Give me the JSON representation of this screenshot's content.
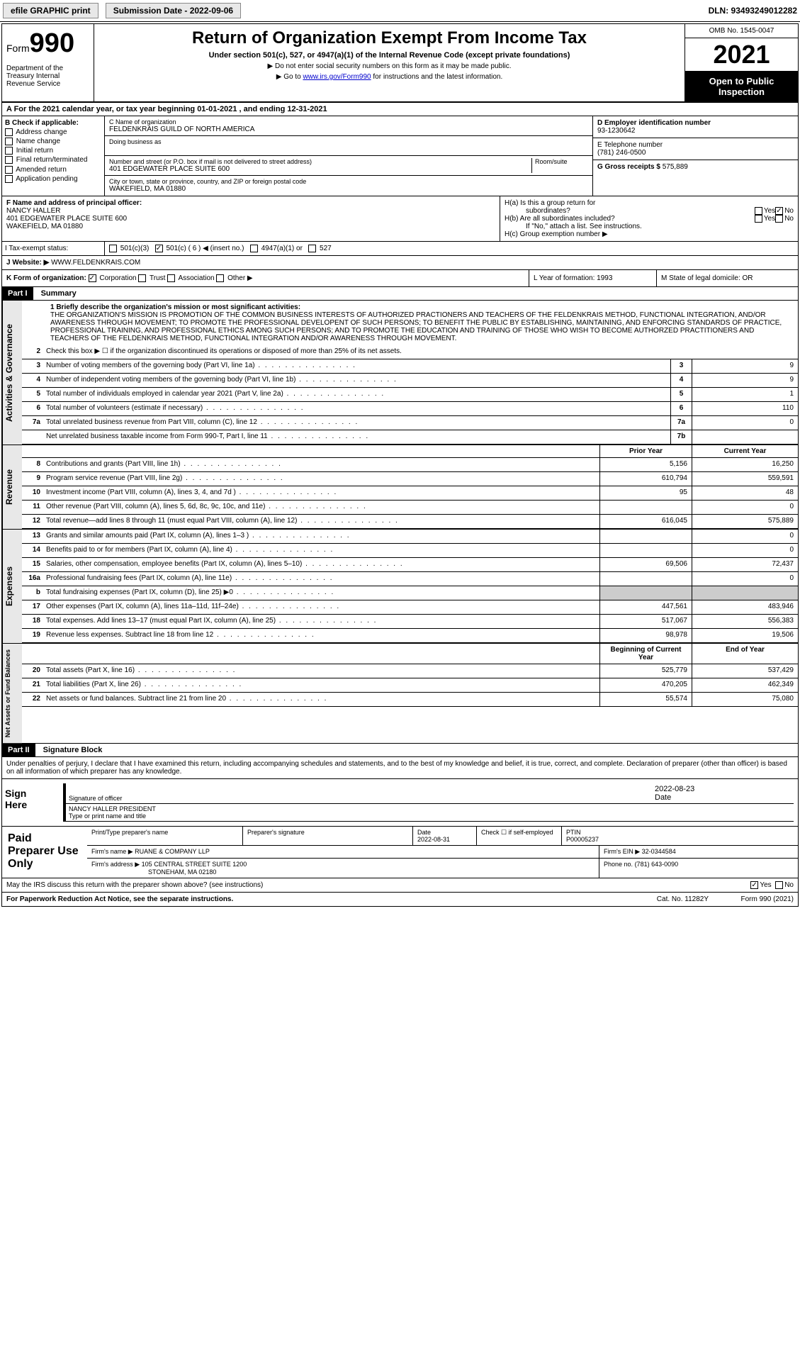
{
  "header": {
    "efile": "efile GRAPHIC print",
    "submission": "Submission Date - 2022-09-06",
    "dln": "DLN: 93493249012282"
  },
  "form": {
    "prefix": "Form",
    "number": "990",
    "dept": "Department of the Treasury Internal Revenue Service",
    "title": "Return of Organization Exempt From Income Tax",
    "subtitle": "Under section 501(c), 527, or 4947(a)(1) of the Internal Revenue Code (except private foundations)",
    "instr1": "▶ Do not enter social security numbers on this form as it may be made public.",
    "instr2_pre": "▶ Go to ",
    "instr2_link": "www.irs.gov/Form990",
    "instr2_post": " for instructions and the latest information.",
    "omb": "OMB No. 1545-0047",
    "year": "2021",
    "inspection": "Open to Public Inspection"
  },
  "period": "A For the 2021 calendar year, or tax year beginning 01-01-2021   , and ending 12-31-2021",
  "section_b": {
    "title": "B Check if applicable:",
    "items": [
      "Address change",
      "Name change",
      "Initial return",
      "Final return/terminated",
      "Amended return",
      "Application pending"
    ]
  },
  "section_c": {
    "name_label": "C Name of organization",
    "name": "FELDENKRAIS GUILD OF NORTH AMERICA",
    "dba_label": "Doing business as",
    "addr_label": "Number and street (or P.O. box if mail is not delivered to street address)",
    "room_label": "Room/suite",
    "addr": "401 EDGEWATER PLACE SUITE 600",
    "city_label": "City or town, state or province, country, and ZIP or foreign postal code",
    "city": "WAKEFIELD, MA  01880"
  },
  "section_d": {
    "ein_label": "D Employer identification number",
    "ein": "93-1230642",
    "phone_label": "E Telephone number",
    "phone": "(781) 246-0500",
    "gross_label": "G Gross receipts $",
    "gross": "575,889"
  },
  "section_f": {
    "label": "F  Name and address of principal officer:",
    "name": "NANCY HALLER",
    "addr1": "401 EDGEWATER PLACE SUITE 600",
    "addr2": "WAKEFIELD, MA  01880"
  },
  "section_h": {
    "ha": "H(a)  Is this a group return for",
    "ha2": "subordinates?",
    "hb": "H(b)  Are all subordinates included?",
    "hb2": "If \"No,\" attach a list. See instructions.",
    "hc": "H(c)  Group exemption number ▶"
  },
  "section_i": {
    "label": "I   Tax-exempt status:",
    "opts": [
      "501(c)(3)",
      "501(c) ( 6 ) ◀ (insert no.)",
      "4947(a)(1) or",
      "527"
    ]
  },
  "section_j": {
    "label": "J   Website: ▶",
    "value": "WWW.FELDENKRAIS.COM"
  },
  "section_k": "K Form of organization:",
  "k_opts": [
    "Corporation",
    "Trust",
    "Association",
    "Other ▶"
  ],
  "section_l": "L Year of formation: 1993",
  "section_m": "M State of legal domicile: OR",
  "part1": {
    "header": "Part I",
    "title": "Summary",
    "mission_label": "1   Briefly describe the organization's mission or most significant activities:",
    "mission": "THE ORGANIZATION'S MISSION IS PROMOTION OF THE COMMON BUSINESS INTERESTS OF AUTHORIZED PRACTIONERS AND TEACHERS OF THE FELDENKRAIS METHOD, FUNCTIONAL INTEGRATION, AND/OR AWARENESS THROUGH MOVEMENT; TO PROMOTE THE PROFESSIONAL DEVELOPENT OF SUCH PERSONS; TO BENEFIT THE PUBLIC BY ESTABLISHING, MAINTAINING, AND ENFORCING STANDARDS OF PRACTICE, PROFESSIONAL TRAINING, AND PROFESSIONAL ETHICS AMONG SUCH PERSONS; AND TO PROMOTE THE EDUCATION AND TRAINING OF THOSE WHO WISH TO BECOME AUTHORZED PRACTITIONERS AND TEACHERS OF THE FELDENKRAIS METHOD, FUNCTIONAL INTEGRATION AND/OR AWARENESS THROUGH MOVEMENT.",
    "line2": "Check this box ▶ ☐  if the organization discontinued its operations or disposed of more than 25% of its net assets."
  },
  "governance": {
    "label": "Activities & Governance",
    "rows": [
      {
        "n": "3",
        "t": "Number of voting members of the governing body (Part VI, line 1a)",
        "r": "3",
        "v": "9"
      },
      {
        "n": "4",
        "t": "Number of independent voting members of the governing body (Part VI, line 1b)",
        "r": "4",
        "v": "9"
      },
      {
        "n": "5",
        "t": "Total number of individuals employed in calendar year 2021 (Part V, line 2a)",
        "r": "5",
        "v": "1"
      },
      {
        "n": "6",
        "t": "Total number of volunteers (estimate if necessary)",
        "r": "6",
        "v": "110"
      },
      {
        "n": "7a",
        "t": "Total unrelated business revenue from Part VIII, column (C), line 12",
        "r": "7a",
        "v": "0"
      },
      {
        "n": "",
        "t": "Net unrelated business taxable income from Form 990-T, Part I, line 11",
        "r": "7b",
        "v": ""
      }
    ]
  },
  "revenue": {
    "label": "Revenue",
    "header_prior": "Prior Year",
    "header_current": "Current Year",
    "rows": [
      {
        "n": "8",
        "t": "Contributions and grants (Part VIII, line 1h)",
        "p": "5,156",
        "c": "16,250"
      },
      {
        "n": "9",
        "t": "Program service revenue (Part VIII, line 2g)",
        "p": "610,794",
        "c": "559,591"
      },
      {
        "n": "10",
        "t": "Investment income (Part VIII, column (A), lines 3, 4, and 7d )",
        "p": "95",
        "c": "48"
      },
      {
        "n": "11",
        "t": "Other revenue (Part VIII, column (A), lines 5, 6d, 8c, 9c, 10c, and 11e)",
        "p": "",
        "c": "0"
      },
      {
        "n": "12",
        "t": "Total revenue—add lines 8 through 11 (must equal Part VIII, column (A), line 12)",
        "p": "616,045",
        "c": "575,889"
      }
    ]
  },
  "expenses": {
    "label": "Expenses",
    "rows": [
      {
        "n": "13",
        "t": "Grants and similar amounts paid (Part IX, column (A), lines 1–3 )",
        "p": "",
        "c": "0"
      },
      {
        "n": "14",
        "t": "Benefits paid to or for members (Part IX, column (A), line 4)",
        "p": "",
        "c": "0"
      },
      {
        "n": "15",
        "t": "Salaries, other compensation, employee benefits (Part IX, column (A), lines 5–10)",
        "p": "69,506",
        "c": "72,437"
      },
      {
        "n": "16a",
        "t": "Professional fundraising fees (Part IX, column (A), line 11e)",
        "p": "",
        "c": "0"
      },
      {
        "n": "b",
        "t": "Total fundraising expenses (Part IX, column (D), line 25) ▶0",
        "p": "shaded",
        "c": "shaded"
      },
      {
        "n": "17",
        "t": "Other expenses (Part IX, column (A), lines 11a–11d, 11f–24e)",
        "p": "447,561",
        "c": "483,946"
      },
      {
        "n": "18",
        "t": "Total expenses. Add lines 13–17 (must equal Part IX, column (A), line 25)",
        "p": "517,067",
        "c": "556,383"
      },
      {
        "n": "19",
        "t": "Revenue less expenses. Subtract line 18 from line 12",
        "p": "98,978",
        "c": "19,506"
      }
    ]
  },
  "netassets": {
    "label": "Net Assets or Fund Balances",
    "header_begin": "Beginning of Current Year",
    "header_end": "End of Year",
    "rows": [
      {
        "n": "20",
        "t": "Total assets (Part X, line 16)",
        "p": "525,779",
        "c": "537,429"
      },
      {
        "n": "21",
        "t": "Total liabilities (Part X, line 26)",
        "p": "470,205",
        "c": "462,349"
      },
      {
        "n": "22",
        "t": "Net assets or fund balances. Subtract line 21 from line 20",
        "p": "55,574",
        "c": "75,080"
      }
    ]
  },
  "part2": {
    "header": "Part II",
    "title": "Signature Block",
    "penalty": "Under penalties of perjury, I declare that I have examined this return, including accompanying schedules and statements, and to the best of my knowledge and belief, it is true, correct, and complete. Declaration of preparer (other than officer) is based on all information of which preparer has any knowledge."
  },
  "sign": {
    "label": "Sign Here",
    "sig_label": "Signature of officer",
    "date_label": "Date",
    "date": "2022-08-23",
    "name": "NANCY HALLER  PRESIDENT",
    "name_label": "Type or print name and title"
  },
  "paid": {
    "label": "Paid Preparer Use Only",
    "h1": "Print/Type preparer's name",
    "h2": "Preparer's signature",
    "h3": "Date",
    "date": "2022-08-31",
    "h4": "Check ☐ if self-employed",
    "h5": "PTIN",
    "ptin": "P00005237",
    "firm_label": "Firm's name   ▶",
    "firm": "RUANE & COMPANY LLP",
    "ein_label": "Firm's EIN ▶",
    "ein": "32-0344584",
    "addr_label": "Firm's address ▶",
    "addr": "105 CENTRAL STREET SUITE 1200",
    "city": "STONEHAM, MA  02180",
    "phone_label": "Phone no.",
    "phone": "(781) 643-0090"
  },
  "footer": {
    "discuss": "May the IRS discuss this return with the preparer shown above? (see instructions)",
    "paperwork": "For Paperwork Reduction Act Notice, see the separate instructions.",
    "cat": "Cat. No. 11282Y",
    "form": "Form 990 (2021)"
  }
}
